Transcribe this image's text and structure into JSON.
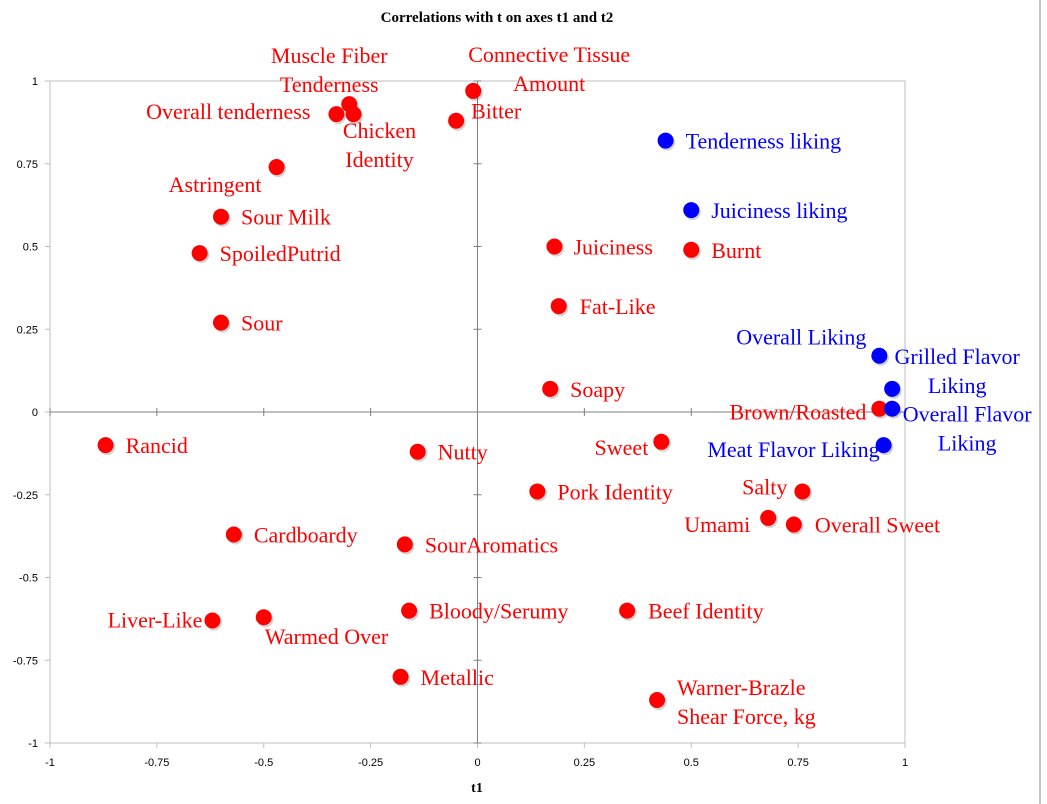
{
  "chart_data": {
    "type": "scatter",
    "title": "Correlations with t on axes t1 and t2",
    "xlabel": "t1",
    "ylabel": "",
    "xlim": [
      -1,
      1
    ],
    "ylim": [
      -1,
      1
    ],
    "xticks": [
      "-1",
      "-0.75",
      "-0.5",
      "-0.25",
      "0",
      "0.25",
      "0.5",
      "0.75",
      "1"
    ],
    "yticks": [
      "1",
      "0.75",
      "0.5",
      "0.25",
      "0",
      "-0.25",
      "-0.5",
      "-0.75",
      "-1"
    ],
    "grid": false,
    "colors": {
      "attribute": "#ff0000",
      "liking": "#0000ff"
    },
    "series": [
      {
        "color": "#ff0000",
        "points": [
          {
            "label": [
              "Muscle Fiber",
              "Tenderness"
            ],
            "x": -0.3,
            "y": 0.93
          },
          {
            "label": [
              "Overall tenderness"
            ],
            "x": -0.33,
            "y": 0.9
          },
          {
            "label": [
              "Chicken",
              "Identity"
            ],
            "x": -0.29,
            "y": 0.9
          },
          {
            "label": [
              "Connective Tissue",
              "Amount"
            ],
            "x": -0.01,
            "y": 0.97
          },
          {
            "label": [
              "Bitter"
            ],
            "x": -0.05,
            "y": 0.88
          },
          {
            "label": [
              "Astringent"
            ],
            "x": -0.47,
            "y": 0.74
          },
          {
            "label": [
              "Sour Milk"
            ],
            "x": -0.6,
            "y": 0.59
          },
          {
            "label": [
              "SpoiledPutrid"
            ],
            "x": -0.65,
            "y": 0.48
          },
          {
            "label": [
              "Sour"
            ],
            "x": -0.6,
            "y": 0.27
          },
          {
            "label": [
              "Juiciness"
            ],
            "x": 0.18,
            "y": 0.5
          },
          {
            "label": [
              "Burnt"
            ],
            "x": 0.5,
            "y": 0.49
          },
          {
            "label": [
              "Fat-Like"
            ],
            "x": 0.19,
            "y": 0.32
          },
          {
            "label": [
              "Soapy"
            ],
            "x": 0.17,
            "y": 0.07
          },
          {
            "label": [
              "Brown/Roasted"
            ],
            "x": 0.94,
            "y": 0.01
          },
          {
            "label": [
              "Rancid"
            ],
            "x": -0.87,
            "y": -0.1
          },
          {
            "label": [
              "Nutty"
            ],
            "x": -0.14,
            "y": -0.12
          },
          {
            "label": [
              "Sweet"
            ],
            "x": 0.43,
            "y": -0.09
          },
          {
            "label": [
              "Pork Identity"
            ],
            "x": 0.14,
            "y": -0.24
          },
          {
            "label": [
              "Salty"
            ],
            "x": 0.76,
            "y": -0.24
          },
          {
            "label": [
              "Umami"
            ],
            "x": 0.68,
            "y": -0.32
          },
          {
            "label": [
              "Overall Sweet"
            ],
            "x": 0.74,
            "y": -0.34
          },
          {
            "label": [
              "Cardboardy"
            ],
            "x": -0.57,
            "y": -0.37
          },
          {
            "label": [
              "SourAromatics"
            ],
            "x": -0.17,
            "y": -0.4
          },
          {
            "label": [
              "Bloody/Serumy"
            ],
            "x": -0.16,
            "y": -0.6
          },
          {
            "label": [
              "Beef Identity"
            ],
            "x": 0.35,
            "y": -0.6
          },
          {
            "label": [
              "Liver-Like"
            ],
            "x": -0.62,
            "y": -0.63
          },
          {
            "label": [
              "Warmed Over"
            ],
            "x": -0.5,
            "y": -0.62
          },
          {
            "label": [
              "Metallic"
            ],
            "x": -0.18,
            "y": -0.8
          },
          {
            "label": [
              "Warner-Brazle",
              "Shear Force, kg"
            ],
            "x": 0.42,
            "y": -0.87
          }
        ]
      },
      {
        "color": "#0000ff",
        "points": [
          {
            "label": [
              "Tenderness liking"
            ],
            "x": 0.44,
            "y": 0.82
          },
          {
            "label": [
              "Juiciness liking"
            ],
            "x": 0.5,
            "y": 0.61
          },
          {
            "label": [
              "Overall Liking"
            ],
            "x": 0.94,
            "y": 0.17
          },
          {
            "label": [
              "Grilled Flavor",
              "Liking"
            ],
            "x": 0.97,
            "y": 0.07
          },
          {
            "label": [
              "Overall Flavor",
              "Liking"
            ],
            "x": 0.97,
            "y": 0.01
          },
          {
            "label": [
              "Meat Flavor Liking"
            ],
            "x": 0.95,
            "y": -0.1
          }
        ]
      }
    ]
  }
}
